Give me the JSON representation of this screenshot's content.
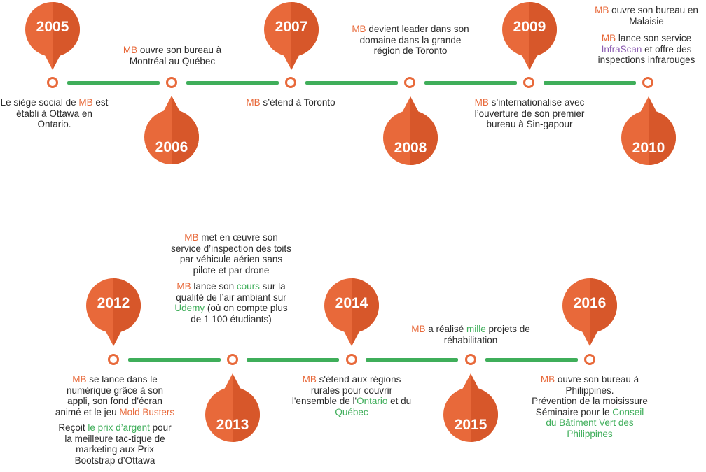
{
  "colors": {
    "accent": "#e8693a",
    "accent_dark": "#d7572a",
    "line": "#3fae5a",
    "highlight_purple": "#8a5bb0"
  },
  "brand": "MB",
  "years": [
    "2005",
    "2006",
    "2007",
    "2008",
    "2009",
    "2010",
    "2012",
    "2013",
    "2014",
    "2015",
    "2016"
  ],
  "t2005": {
    "a": "Le siège social de ",
    "b": "est établi à Ottawa en Ontario."
  },
  "t2006": {
    "a": " ouvre son bureau à Montréal  au Québec"
  },
  "t2007": {
    "a": " s’étend à Toronto"
  },
  "t2008": {
    "a": " devient leader dans son domaine dans la grande région de Toronto"
  },
  "t2009": {
    "a": " s’internationalise avec l’ouverture de son premier bureau à Sin-gapour"
  },
  "t2010": {
    "a": " ouvre son bureau en Malaisie",
    "b": " lance son service ",
    "c": "InfraScan",
    "d": " et offre des inspections infrarouges"
  },
  "t2012": {
    "a": " se lance dans le numérique grâce à son appli, son fond d’écran animé et le jeu ",
    "b": "Mold Busters",
    "c": "Reçoit ",
    "d": "le prix d’argent",
    "e": " pour la meilleure tac-tique de marketing  aux Prix Bootstrap d’Ottawa"
  },
  "t2013": {
    "a": " met en œuvre son service d’inspection des toits par véhicule aérien sans pilote et par drone",
    "b": " lance son ",
    "c": "cours",
    "d": " sur la qualité de l’air ambiant sur ",
    "e": "Udemy",
    "f": " (où on compte plus de 1 100 étudiants)"
  },
  "t2014": {
    "a": " s'étend aux régions rurales pour couvrir l'ensemble de l'",
    "b": "Ontario",
    "c": " et du ",
    "d": "Québec"
  },
  "t2015": {
    "a": " a réalisé ",
    "b": "mille",
    "c": " projets de réhabilitation"
  },
  "t2016": {
    "a": " ouvre son bureau à Philippines.",
    "b": "Prévention de la moisissure",
    "c": "Séminaire pour le ",
    "d": "Conseil du Bâtiment Vert des Philippines"
  }
}
